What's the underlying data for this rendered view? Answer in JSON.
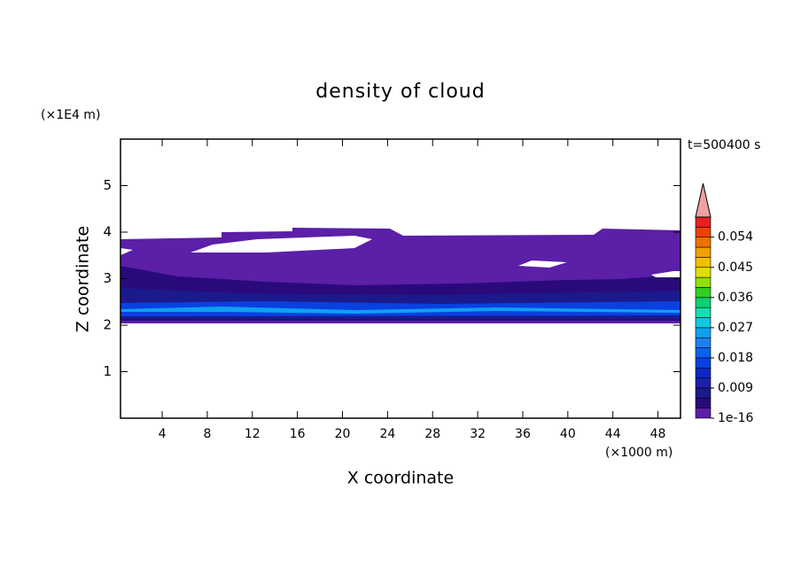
{
  "chart_data": {
    "type": "contour",
    "title": "density of cloud",
    "time_label": "t=500400 s",
    "x_label": "X coordinate",
    "x_unit": "(×1000 m)",
    "y_label": "Z coordinate",
    "y_unit": "(×1E4 m)",
    "xlim": [
      0.3,
      50
    ],
    "xticks": [
      4,
      8,
      12,
      16,
      20,
      24,
      28,
      32,
      36,
      40,
      44,
      48
    ],
    "ylim": [
      0,
      6
    ],
    "yticks": [
      1,
      2,
      3,
      4,
      5
    ],
    "colorbar": {
      "lim": [
        0,
        0.06
      ],
      "ticks": [
        {
          "value": 1e-16,
          "label": "1e-16"
        },
        0.009,
        0.018,
        0.027,
        0.036,
        0.045,
        0.054
      ],
      "colors": [
        "#5b1fa8",
        "#2a0a7a",
        "#1a1a8c",
        "#1a20a8",
        "#0a28c8",
        "#0a40e0",
        "#0a60f0",
        "#1e80f0",
        "#10a0f0",
        "#10c8e0",
        "#10e0b0",
        "#10d070",
        "#30d020",
        "#90e000",
        "#e0e000",
        "#f0c000",
        "#f0a000",
        "#f07000",
        "#f04000",
        "#e82020"
      ],
      "extend_color": "#f0a0a0"
    }
  }
}
